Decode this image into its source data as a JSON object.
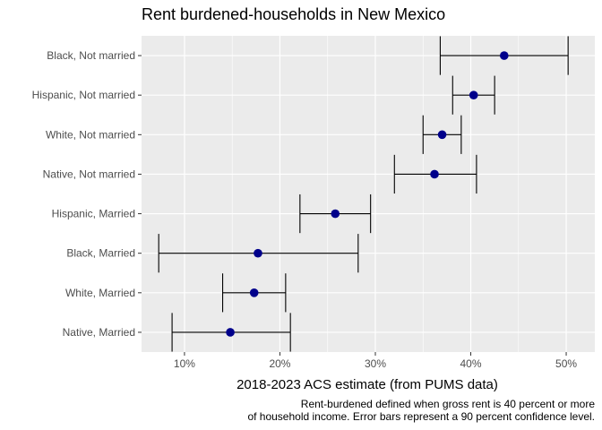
{
  "colors": {
    "panel_background": "#EBEBEB",
    "grid_major": "#FFFFFF",
    "point": "#00008B",
    "error_bar": "#000000"
  },
  "chart_data": {
    "type": "scatter",
    "variant": "dot plot with horizontal error bars",
    "title": "Rent burdened-households in New Mexico",
    "xlabel": "2018-2023 ACS estimate (from PUMS data)",
    "ylabel": "",
    "caption": [
      "Rent-burdened defined when gross rent is 40 percent or more",
      "of household income. Error bars represent a 90 percent confidence level."
    ],
    "xlim": [
      0.055,
      0.53
    ],
    "x_ticks": [
      0.1,
      0.2,
      0.3,
      0.4,
      0.5
    ],
    "x_tick_labels": [
      "10%",
      "20%",
      "30%",
      "40%",
      "50%"
    ],
    "grid": true,
    "legend": "none",
    "categories": [
      "Black, Not married",
      "Hispanic, Not married",
      "White, Not married",
      "Native, Not married",
      "Hispanic, Married",
      "Black, Married",
      "White, Married",
      "Native, Married"
    ],
    "estimates": [
      0.435,
      0.403,
      0.37,
      0.362,
      0.258,
      0.177,
      0.173,
      0.148
    ],
    "lower": [
      0.368,
      0.381,
      0.35,
      0.32,
      0.221,
      0.073,
      0.14,
      0.087
    ],
    "upper": [
      0.502,
      0.425,
      0.39,
      0.406,
      0.295,
      0.282,
      0.206,
      0.211
    ]
  }
}
